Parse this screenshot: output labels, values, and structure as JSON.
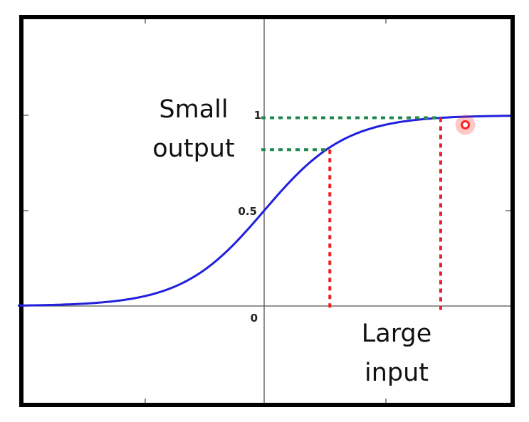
{
  "chart_data": {
    "type": "line",
    "title": "",
    "xlabel": "",
    "ylabel": "",
    "xlim": [
      -6,
      6
    ],
    "ylim": [
      -0.5,
      1.25
    ],
    "grid": false,
    "series": [
      {
        "x": [
          -6,
          -5,
          -4,
          -3,
          -2,
          -1,
          0,
          1,
          2,
          3,
          4,
          5,
          6
        ],
        "y": [
          0.0025,
          0.0067,
          0.018,
          0.047,
          0.119,
          0.269,
          0.5,
          0.731,
          0.881,
          0.953,
          0.982,
          0.993,
          0.9975
        ]
      }
    ],
    "y_ticks": [
      "0.5",
      "1"
    ],
    "x_ticks": [
      "0"
    ],
    "annotations": {
      "small_output": [
        "Small",
        "output"
      ],
      "large_input": [
        "Large",
        "input"
      ],
      "guide_points": [
        {
          "x": 4.3,
          "y": 0.987
        },
        {
          "x": 4.3,
          "y": 0.82
        }
      ],
      "guide_x": [
        4.3,
        1.6
      ],
      "guide_y": [
        0.987,
        0.82
      ],
      "marker": {
        "x": 4.9,
        "y": 0.95
      },
      "curve_color": "#2020dd",
      "horizontal_guide_color": "#1f8a4c",
      "vertical_guide_color": "#e8231f",
      "marker_color": "#ff2222"
    }
  }
}
